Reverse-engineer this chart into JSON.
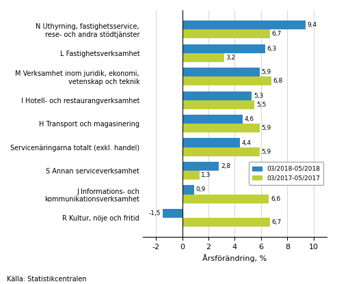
{
  "categories": [
    "N Uthyrning, fastighetsservice,\nrese- och andra stödtjänster",
    "L Fastighetsverksamhet",
    "M Verksamhet inom juridik, ekonomi,\nvetenskap och teknik",
    "I Hotell- och restaurangverksamhet",
    "H Transport och magasinering",
    "Servicenäringarna totalt (exkl. handel)",
    "S Annan serviceverksamhet",
    "J Informations- och\nkommunikationsverksamhet",
    "R Kultur, nöje och fritid"
  ],
  "values_2018": [
    9.4,
    6.3,
    5.9,
    5.3,
    4.6,
    4.4,
    2.8,
    0.9,
    -1.5
  ],
  "values_2017": [
    6.7,
    3.2,
    6.8,
    5.5,
    5.9,
    5.9,
    1.3,
    6.6,
    6.7
  ],
  "color_2018": "#2E86C1",
  "color_2017": "#BFCF3A",
  "xlabel": "Årsförändring, %",
  "legend_2018": "03/2018-05/2018",
  "legend_2017": "03/2017-05/2017",
  "xlim": [
    -3,
    11
  ],
  "xticks": [
    -2,
    0,
    2,
    4,
    6,
    8,
    10
  ],
  "source": "Källa: Statistikcentralen",
  "bar_height": 0.38,
  "background_color": "#ffffff"
}
